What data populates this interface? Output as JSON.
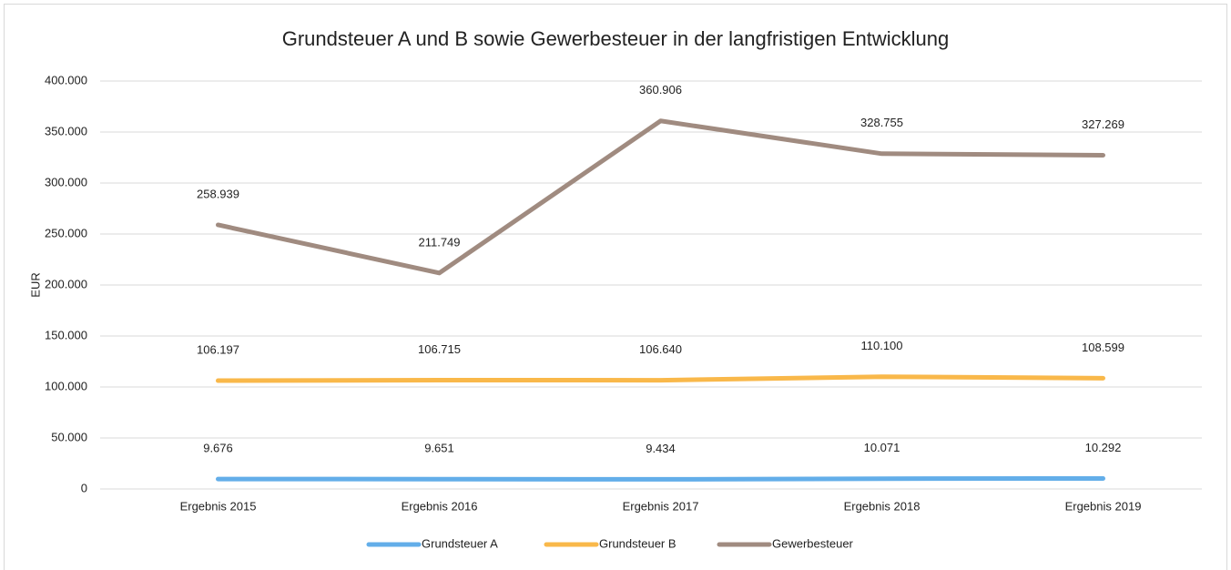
{
  "chart_data": {
    "type": "line",
    "title": "Grundsteuer A und B sowie Gewerbesteuer in der langfristigen Entwicklung",
    "ylabel": "EUR",
    "categories": [
      "Ergebnis 2015",
      "Ergebnis 2016",
      "Ergebnis 2017",
      "Ergebnis 2018",
      "Ergebnis 2019"
    ],
    "series": [
      {
        "name": "Grundsteuer A",
        "color": "#63aee9",
        "values": [
          9676,
          9651,
          9434,
          10071,
          10292
        ],
        "value_labels": [
          "9.676",
          "9.651",
          "9.434",
          "10.071",
          "10.292"
        ]
      },
      {
        "name": "Grundsteuer B",
        "color": "#f9b84a",
        "values": [
          106197,
          106715,
          106640,
          110100,
          108599
        ],
        "value_labels": [
          "106.197",
          "106.715",
          "106.640",
          "110.100",
          "108.599"
        ]
      },
      {
        "name": "Gewerbesteuer",
        "color": "#a08b80",
        "values": [
          258939,
          211749,
          360906,
          328755,
          327269
        ],
        "value_labels": [
          "258.939",
          "211.749",
          "360.906",
          "328.755",
          "327.269"
        ]
      }
    ],
    "ylim": [
      0,
      400000
    ],
    "yticks": [
      0,
      {
        "value": 50000,
        "label": "50.000"
      },
      {
        "value": 100000,
        "label": "100.000"
      },
      {
        "value": 150000,
        "label": "150.000"
      },
      {
        "value": 200000,
        "label": "200.000"
      },
      {
        "value": 250000,
        "label": "250.000"
      },
      {
        "value": 300000,
        "label": "300.000"
      },
      {
        "value": 350000,
        "label": "350.000"
      },
      {
        "value": 400000,
        "label": "400.000"
      }
    ],
    "grid": true,
    "legend": "bottom"
  }
}
